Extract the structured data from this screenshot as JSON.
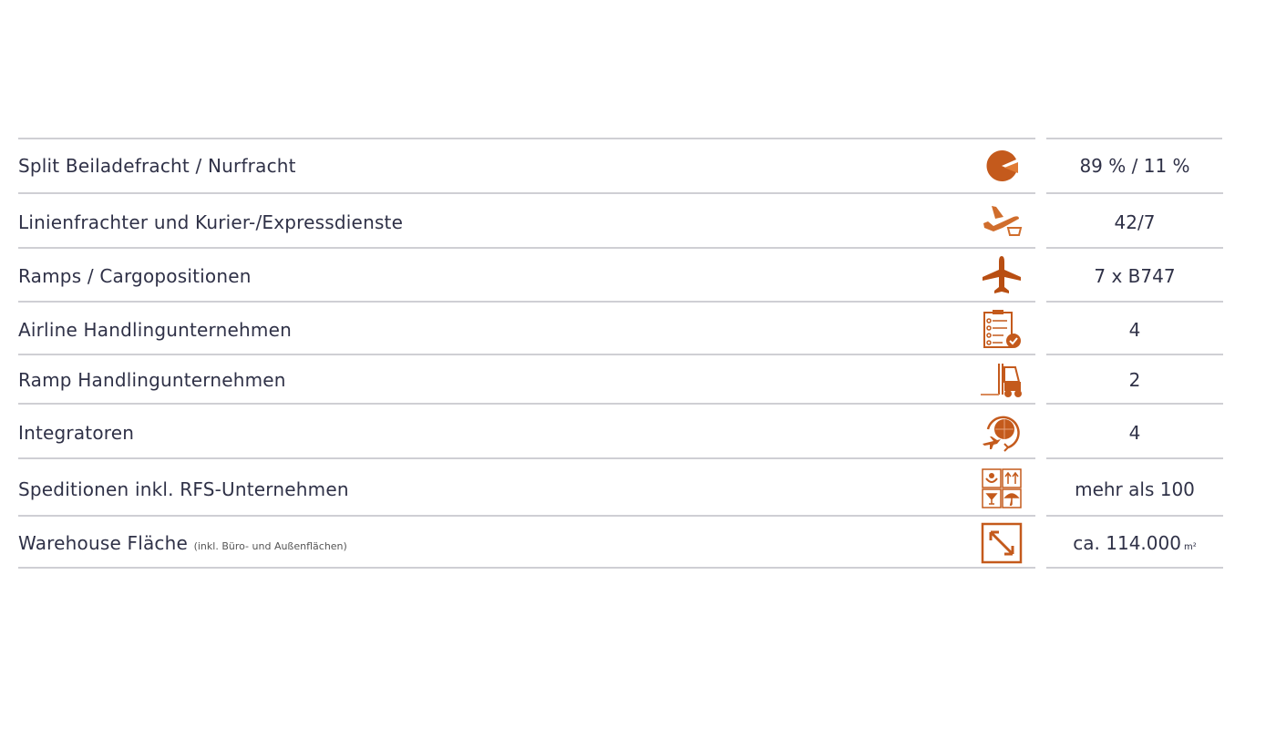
{
  "colors": {
    "accent": "#c45a1c",
    "text": "#2f3147",
    "divider": "#cfcfd4"
  },
  "rows": [
    {
      "label": "Split Beiladefracht / Nurfracht",
      "icon": "pie-chart-icon",
      "value": "89 % / 11 %"
    },
    {
      "label": "Linienfrachter und Kurier-/Expressdienste",
      "icon": "plane-departure-package-icon",
      "value": "42/7"
    },
    {
      "label": "Ramps / Cargopositionen",
      "icon": "airplane-icon",
      "value": "7 x B747"
    },
    {
      "label": "Airline Handlingunternehmen",
      "icon": "clipboard-check-icon",
      "value": "4"
    },
    {
      "label": "Ramp Handlingunternehmen",
      "icon": "forklift-icon",
      "value": "2"
    },
    {
      "label": "Integratoren",
      "icon": "globe-plane-icon",
      "value": "4"
    },
    {
      "label": "Speditionen inkl. RFS-Unternehmen",
      "icon": "package-symbols-icon",
      "value": "mehr als 100"
    },
    {
      "label": "Warehouse Fläche",
      "label_note": "(inkl. Büro- und Außenflächen)",
      "icon": "area-arrow-icon",
      "value": "ca. 114.000",
      "value_unit": "m²"
    }
  ]
}
